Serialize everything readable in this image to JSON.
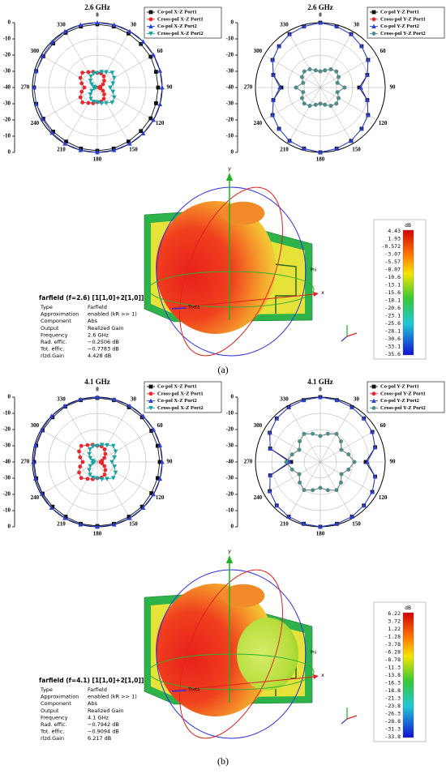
{
  "chart_data": [
    {
      "type": "polar",
      "title": "2.6 GHz",
      "x": [
        0,
        15,
        30,
        45,
        60,
        75,
        90,
        105,
        120,
        135,
        150,
        165,
        180,
        195,
        210,
        225,
        240,
        255,
        270,
        285,
        300,
        315,
        330,
        345
      ],
      "rlim": [
        -40,
        0
      ],
      "rticks": [
        0,
        -10,
        -20,
        -30,
        -40
      ],
      "thetaticks": [
        0,
        30,
        60,
        90,
        120,
        150,
        180,
        210,
        240,
        270,
        300,
        330
      ],
      "series": [
        {
          "name": "Co-pol X-Z Port1",
          "color": "#111111",
          "marker": "square",
          "values": [
            -1,
            -1,
            -1.5,
            -2,
            -2,
            -2.5,
            -2.5,
            -2.5,
            -2,
            -2,
            -1.5,
            -1,
            -1,
            -1,
            -1.5,
            -1.5,
            -1.5,
            -1,
            -1,
            -1,
            -1.5,
            -1.5,
            -1,
            -1
          ]
        },
        {
          "name": "Cross-pol X-Z Port1",
          "color": "#e8262d",
          "marker": "circle",
          "values": [
            -31,
            -31,
            -32,
            -34,
            -36,
            -38,
            -39,
            -38,
            -36,
            -34,
            -32,
            -31,
            -31,
            -30,
            -29,
            -27,
            -28,
            -30,
            -32,
            -30,
            -28,
            -27,
            -29,
            -30
          ]
        },
        {
          "name": "Co-pol X-Z Port2",
          "color": "#2b3fd4",
          "marker": "triangle-up",
          "values": [
            0,
            0,
            0,
            0,
            0,
            0,
            0,
            0,
            0,
            0,
            0,
            0,
            0,
            0,
            0,
            -0.5,
            -1,
            -1,
            -1,
            -1,
            -1,
            -0.5,
            0,
            0
          ]
        },
        {
          "name": "Cross-pol X-Z Port2",
          "color": "#1aa3a3",
          "marker": "triangle-down",
          "values": [
            -31,
            -30,
            -29,
            -27,
            -28,
            -30,
            -32,
            -30,
            -28,
            -27,
            -29,
            -30,
            -31,
            -31,
            -32,
            -34,
            -36,
            -38,
            -39,
            -38,
            -36,
            -34,
            -32,
            -31
          ]
        }
      ]
    },
    {
      "type": "polar",
      "title": "2.6 GHz",
      "x": [
        0,
        15,
        30,
        45,
        60,
        75,
        90,
        105,
        120,
        135,
        150,
        165,
        180,
        195,
        210,
        225,
        240,
        255,
        270,
        285,
        300,
        315,
        330,
        345
      ],
      "rlim": [
        -40,
        0
      ],
      "rticks": [
        0,
        -10,
        -20,
        -30,
        -40
      ],
      "thetaticks": [
        0,
        30,
        60,
        90,
        120,
        150,
        180,
        210,
        240,
        270,
        300,
        330
      ],
      "series": [
        {
          "name": "Co-pol Y-Z Port1",
          "color": "#111111",
          "marker": "square",
          "values": [
            0,
            -1,
            -2,
            -4,
            -6,
            -10,
            -16,
            -10,
            -6,
            -4,
            -2,
            -1,
            0,
            -1,
            -2,
            -4,
            -6,
            -10,
            -16,
            -10,
            -6,
            -4,
            -2,
            -1
          ]
        },
        {
          "name": "Cross-pol Y-Z Port1",
          "color": "#e8262d",
          "marker": "circle",
          "values": [
            -30,
            -29,
            -27,
            -26,
            -27,
            -29,
            -25,
            -29,
            -27,
            -26,
            -27,
            -29,
            -30,
            -29,
            -27,
            -26,
            -27,
            -29,
            -25,
            -29,
            -27,
            -26,
            -27,
            -29
          ]
        },
        {
          "name": "Co-pol Y-Z Port2",
          "color": "#2b3fd4",
          "marker": "triangle-up",
          "values": [
            0,
            -1,
            -2,
            -4,
            -6,
            -10,
            -15,
            -10,
            -6,
            -4,
            -2,
            -1,
            0,
            -1,
            -2,
            -4,
            -6,
            -10,
            -15,
            -10,
            -6,
            -4,
            -2,
            -1
          ]
        },
        {
          "name": "Cross-pol Y-Z Port2",
          "color": "#4a8f8f",
          "marker": "circle",
          "values": [
            -30,
            -29,
            -27,
            -26,
            -27,
            -29,
            -25,
            -29,
            -27,
            -26,
            -27,
            -29,
            -30,
            -29,
            -27,
            -26,
            -27,
            -29,
            -25,
            -29,
            -27,
            -26,
            -27,
            -29
          ]
        }
      ]
    },
    {
      "type": "polar",
      "title": "4.1 GHz",
      "x": [
        0,
        15,
        30,
        45,
        60,
        75,
        90,
        105,
        120,
        135,
        150,
        165,
        180,
        195,
        210,
        225,
        240,
        255,
        270,
        285,
        300,
        315,
        330,
        345
      ],
      "rlim": [
        -40,
        0
      ],
      "rticks": [
        0,
        -10,
        -20,
        -30,
        -40
      ],
      "thetaticks": [
        0,
        30,
        60,
        90,
        120,
        150,
        180,
        210,
        240,
        270,
        300,
        330
      ],
      "series": [
        {
          "name": "Co-pol X-Z Port1",
          "color": "#111111",
          "marker": "square",
          "values": [
            -0.5,
            -0.5,
            -1,
            -1,
            -1.5,
            -1.5,
            -1.5,
            -1.5,
            -1.5,
            -1,
            -1,
            -0.5,
            -0.5,
            -0.5,
            -1,
            -1,
            -1,
            -1,
            -1,
            -1,
            -1,
            -1,
            -0.5,
            -0.5
          ]
        },
        {
          "name": "Cross-pol X-Z Port1",
          "color": "#e8262d",
          "marker": "circle",
          "values": [
            -30,
            -30,
            -31,
            -33,
            -35,
            -37,
            -38,
            -37,
            -35,
            -33,
            -31,
            -30,
            -30,
            -29,
            -28,
            -26,
            -27,
            -29,
            -31,
            -29,
            -27,
            -26,
            -28,
            -29
          ]
        },
        {
          "name": "Co-pol X-Z Port2",
          "color": "#2b3fd4",
          "marker": "triangle-up",
          "values": [
            0,
            0,
            0,
            0,
            0,
            0,
            0,
            0,
            0,
            0,
            0,
            0,
            0,
            0,
            0,
            0,
            -0.5,
            -0.5,
            -0.5,
            -0.5,
            -0.5,
            0,
            0,
            0
          ]
        },
        {
          "name": "Cross-pol X-Z Port2",
          "color": "#1aa3a3",
          "marker": "triangle-down",
          "values": [
            -30,
            -29,
            -28,
            -26,
            -27,
            -29,
            -31,
            -29,
            -27,
            -26,
            -28,
            -29,
            -30,
            -30,
            -31,
            -33,
            -35,
            -37,
            -38,
            -37,
            -35,
            -33,
            -31,
            -30
          ]
        }
      ]
    },
    {
      "type": "polar",
      "title": "4.1 GHz",
      "x": [
        0,
        15,
        30,
        45,
        60,
        75,
        90,
        105,
        120,
        135,
        150,
        165,
        180,
        195,
        210,
        225,
        240,
        255,
        270,
        285,
        300,
        315,
        330,
        345
      ],
      "rlim": [
        -40,
        0
      ],
      "rticks": [
        0,
        -10,
        -20,
        -30,
        -40
      ],
      "thetaticks": [
        0,
        30,
        60,
        90,
        120,
        150,
        180,
        210,
        240,
        270,
        300,
        330
      ],
      "series": [
        {
          "name": "Co-pol Y-Z Port1",
          "color": "#111111",
          "marker": "square",
          "values": [
            0,
            -0.5,
            -1,
            -2,
            -3,
            -5,
            -12,
            -5,
            -3,
            -2,
            -1,
            -0.5,
            0,
            -0.5,
            -1,
            -2,
            -4,
            -8,
            -22,
            -8,
            -4,
            -2,
            -1,
            -0.5
          ]
        },
        {
          "name": "Cross-pol Y-Z Port1",
          "color": "#e8262d",
          "marker": "circle",
          "values": [
            -24,
            -22,
            -20,
            -22,
            -25,
            -22,
            -19,
            -22,
            -25,
            -22,
            -20,
            -22,
            -24,
            -22,
            -20,
            -22,
            -25,
            -22,
            -19,
            -22,
            -25,
            -22,
            -20,
            -22
          ]
        },
        {
          "name": "Co-pol Y-Z Port2",
          "color": "#2b3fd4",
          "marker": "triangle-up",
          "values": [
            0,
            -0.5,
            -1,
            -2,
            -3,
            -5,
            -11,
            -5,
            -3,
            -2,
            -1,
            -0.5,
            0,
            -0.5,
            -1,
            -2,
            -4,
            -8,
            -21,
            -8,
            -4,
            -2,
            -1,
            -0.5
          ]
        },
        {
          "name": "Cross-pol Y-Z Port2",
          "color": "#4a8f8f",
          "marker": "circle",
          "values": [
            -24,
            -22,
            -20,
            -22,
            -25,
            -22,
            -19,
            -22,
            -25,
            -22,
            -20,
            -22,
            -24,
            -22,
            -20,
            -22,
            -25,
            -22,
            -19,
            -22,
            -25,
            -22,
            -20,
            -22
          ]
        }
      ]
    }
  ],
  "figures": [
    {
      "farfield": {
        "title": "farfield (f=2.6) [1[1,0]+2[1,0]]",
        "rows": [
          [
            "Type",
            "Farfield"
          ],
          [
            "Approximation",
            "enabled (kR >> 1)"
          ],
          [
            "Component",
            "Abs"
          ],
          [
            "Output",
            "Realized Gain"
          ],
          [
            "Frequency",
            "2.6 GHz"
          ],
          [
            "Rad. effic.",
            "−0.2506 dB"
          ],
          [
            "Tot. effic.",
            "−0.7783 dB"
          ],
          [
            "rlzd.Gain",
            "4.428 dB"
          ]
        ]
      },
      "colorbar": {
        "unit": "dB",
        "ticks": [
          "4.43",
          "1.93",
          "-0.572",
          "-3.07",
          "-5.57",
          "-8.07",
          "-10.6",
          "-13.1",
          "-15.6",
          "-18.1",
          "-20.6",
          "-23.1",
          "-25.6",
          "-28.1",
          "-30.6",
          "-33.1",
          "-35.6"
        ]
      },
      "axis_labels": {
        "y": "y",
        "x": "x",
        "phi": "Phi",
        "theta": "Theta"
      }
    },
    {
      "farfield": {
        "title": "farfield (f=4.1) [1[1,0]+2[1,0]]",
        "rows": [
          [
            "Type",
            "Farfield"
          ],
          [
            "Approximation",
            "enabled (kR >> 1)"
          ],
          [
            "Component",
            "Abs"
          ],
          [
            "Output",
            "Realized Gain"
          ],
          [
            "Frequency",
            "4.1 GHz"
          ],
          [
            "Rad. effic.",
            "−0.7942 dB"
          ],
          [
            "Tot. effic.",
            "−0.9094 dB"
          ],
          [
            "rlzd.Gain",
            "6.217 dB"
          ]
        ]
      },
      "colorbar": {
        "unit": "dB",
        "ticks": [
          "6.22",
          "3.72",
          "1.22",
          "-1.28",
          "-3.78",
          "-6.28",
          "-8.78",
          "-11.3",
          "-13.8",
          "-16.3",
          "-18.8",
          "-21.3",
          "-23.8",
          "-26.3",
          "-28.8",
          "-31.3",
          "-33.8"
        ]
      },
      "axis_labels": {
        "y": "y",
        "x": "x",
        "phi": "Phi",
        "theta": "Theta"
      }
    }
  ],
  "captions": [
    "(a)",
    "(b)"
  ]
}
